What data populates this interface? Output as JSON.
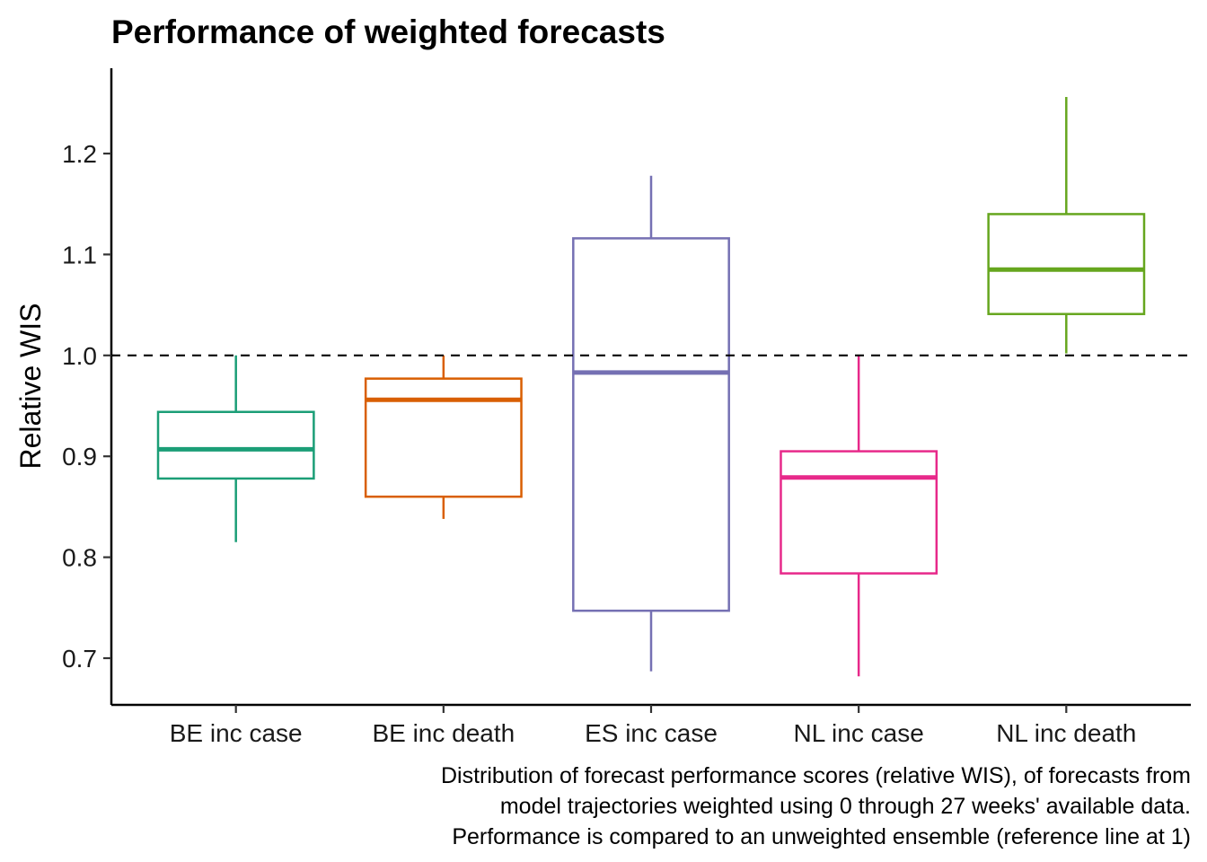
{
  "chart_data": {
    "type": "box",
    "title": "Performance of weighted forecasts",
    "ylabel": "Relative WIS",
    "xlabel": "",
    "ylim": [
      0.65,
      1.29
    ],
    "yticks": [
      0.7,
      0.8,
      0.9,
      1.0,
      1.1,
      1.2
    ],
    "ytick_labels": [
      "0.7",
      "0.8",
      "0.9",
      "1.0",
      "1.1",
      "1.2"
    ],
    "reference_line": {
      "y": 1.0,
      "style": "dashed"
    },
    "grid": false,
    "legend": "none",
    "categories": [
      "BE inc case",
      "BE inc death",
      "ES inc case",
      "NL inc case",
      "NL inc death"
    ],
    "boxes": [
      {
        "category": "BE inc case",
        "color": "#1B9E77",
        "whisker_low": 0.815,
        "q1": 0.878,
        "median": 0.907,
        "q3": 0.944,
        "whisker_high": 1.0
      },
      {
        "category": "BE inc death",
        "color": "#D95F02",
        "whisker_low": 0.838,
        "q1": 0.86,
        "median": 0.956,
        "q3": 0.977,
        "whisker_high": 1.0
      },
      {
        "category": "ES inc case",
        "color": "#7570B3",
        "whisker_low": 0.687,
        "q1": 0.747,
        "median": 0.983,
        "q3": 1.116,
        "whisker_high": 1.178
      },
      {
        "category": "NL inc case",
        "color": "#E7298A",
        "whisker_low": 0.682,
        "q1": 0.784,
        "median": 0.879,
        "q3": 0.905,
        "whisker_high": 1.0
      },
      {
        "category": "NL inc death",
        "color": "#66A61E",
        "whisker_low": 1.002,
        "q1": 1.041,
        "median": 1.085,
        "q3": 1.14,
        "whisker_high": 1.256
      }
    ],
    "caption": [
      "Distribution of forecast performance scores (relative WIS), of forecasts from",
      "model trajectories weighted using 0 through 27 weeks' available data.",
      "Performance is compared to an unweighted ensemble (reference line at 1)"
    ]
  }
}
